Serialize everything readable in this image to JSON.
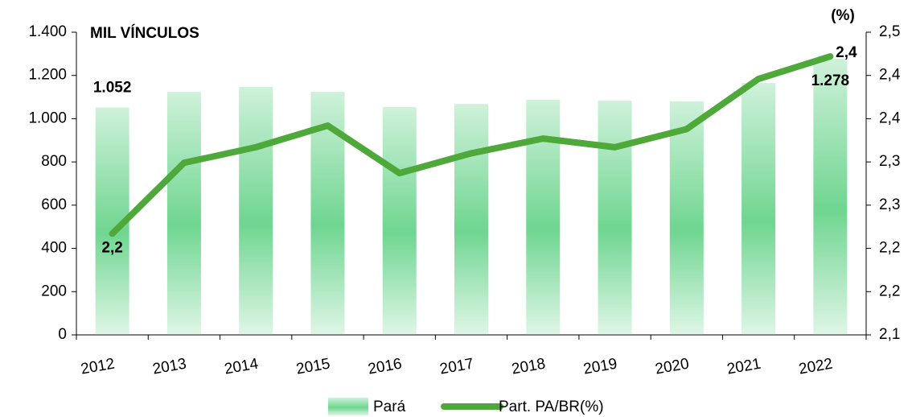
{
  "chart_data": {
    "type": "bar_line",
    "y_label": "MIL VÍNCULOS",
    "y2_label": "(%)",
    "categories": [
      "2012",
      "2013",
      "2014",
      "2015",
      "2016",
      "2017",
      "2018",
      "2019",
      "2020",
      "2021",
      "2022"
    ],
    "series": [
      {
        "name": "Pará",
        "type": "bar",
        "color": "#5fd184",
        "values": [
          1052,
          1124,
          1147,
          1124,
          1054,
          1068,
          1087,
          1083,
          1080,
          1165,
          1278
        ],
        "value_labels": [
          "1.052",
          null,
          null,
          null,
          null,
          null,
          null,
          null,
          null,
          null,
          "1.278"
        ]
      },
      {
        "name": "Part. PA/BR(%)",
        "type": "line",
        "axis": "y2",
        "color": "#4ea83a",
        "values": [
          2.217,
          2.299,
          2.317,
          2.342,
          2.287,
          2.31,
          2.327,
          2.317,
          2.338,
          2.396,
          2.422
        ],
        "value_labels": [
          "2,2",
          null,
          null,
          null,
          null,
          null,
          null,
          null,
          null,
          null,
          "2,4"
        ]
      }
    ],
    "ylim": [
      0,
      1400
    ],
    "yticks": [
      0,
      200,
      400,
      600,
      800,
      {
        "value": 1000,
        "label": "1.000"
      },
      {
        "value": 1200,
        "label": "1.200"
      },
      {
        "value": 1400,
        "label": "1.400"
      }
    ],
    "y2lim": [
      2.1,
      2.45
    ],
    "y2ticks": [
      {
        "value": 2.1,
        "label": "2,1"
      },
      {
        "value": 2.15,
        "label": "2,2"
      },
      {
        "value": 2.2,
        "label": "2,2"
      },
      {
        "value": 2.25,
        "label": "2,3"
      },
      {
        "value": 2.3,
        "label": "2,3"
      },
      {
        "value": 2.35,
        "label": "2,4"
      },
      {
        "value": 2.4,
        "label": "2,4"
      },
      {
        "value": 2.45,
        "label": "2,5"
      }
    ],
    "grid": false,
    "legend": "bottom"
  }
}
